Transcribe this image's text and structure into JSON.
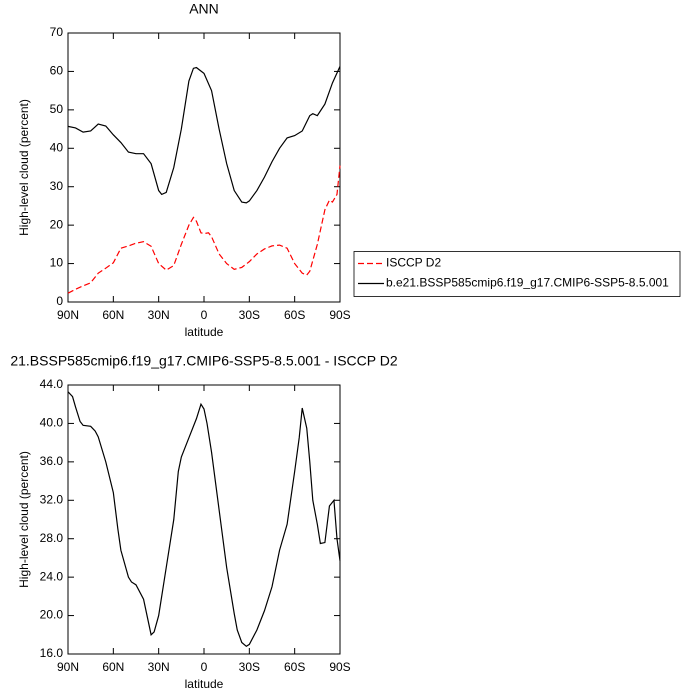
{
  "chart_data": [
    {
      "type": "line",
      "title": "ANN",
      "ylabel": "High-level cloud (percent)",
      "xlabel": "latitude",
      "xlim": [
        90,
        -90
      ],
      "xticks": [
        {
          "value": 90,
          "label": "90N"
        },
        {
          "value": 60,
          "label": "60N"
        },
        {
          "value": 30,
          "label": "30N"
        },
        0,
        {
          "value": -30,
          "label": "30S"
        },
        {
          "value": -60,
          "label": "60S"
        },
        {
          "value": -90,
          "label": "90S"
        }
      ],
      "ylim": [
        0,
        70
      ],
      "yticks": [
        0,
        10,
        20,
        30,
        40,
        50,
        60,
        70
      ],
      "legend": "right",
      "series": [
        {
          "name": "ISCCP D2",
          "color": "#ff0000",
          "linestyle": "dashed",
          "x": [
            90,
            85,
            80,
            75,
            70,
            65,
            60,
            55,
            50,
            45,
            40,
            35,
            30,
            25,
            20,
            15,
            10,
            7,
            5,
            2,
            0,
            -3,
            -5,
            -10,
            -15,
            -20,
            -25,
            -30,
            -35,
            -40,
            -45,
            -50,
            -55,
            -60,
            -65,
            -68,
            -70,
            -75,
            -80,
            -83,
            -85,
            -88,
            -90
          ],
          "values": [
            2.3,
            3.3,
            4.2,
            5,
            7.5,
            8.8,
            10.2,
            14,
            14.6,
            15.3,
            15.7,
            14.5,
            10,
            8.3,
            9.5,
            15,
            20,
            22,
            21,
            18,
            17.8,
            18,
            17,
            12.5,
            10,
            8.5,
            9,
            10.5,
            12.5,
            13.8,
            14.6,
            14.8,
            14,
            10,
            7.5,
            7,
            8,
            15,
            24,
            26.5,
            26,
            28,
            35.5
          ]
        },
        {
          "name": "b.e21.BSSP585cmip6.f19_g17.CMIP6-SSP5-8.5.001",
          "color": "#000000",
          "linestyle": "solid",
          "x": [
            90,
            85,
            80,
            75,
            70,
            65,
            60,
            55,
            50,
            45,
            40,
            35,
            30,
            28,
            25,
            20,
            15,
            10,
            7,
            5,
            0,
            -5,
            -10,
            -15,
            -20,
            -25,
            -28,
            -30,
            -35,
            -40,
            -45,
            -50,
            -55,
            -60,
            -65,
            -70,
            -72,
            -75,
            -80,
            -85,
            -90
          ],
          "values": [
            45.7,
            45.3,
            44.2,
            44.5,
            46.3,
            45.8,
            43.5,
            41.5,
            39,
            38.6,
            38.6,
            36,
            29,
            28,
            28.5,
            35,
            45,
            57.5,
            60.8,
            61,
            59.5,
            55,
            45,
            36,
            29,
            26,
            25.8,
            26.3,
            29,
            32.5,
            36.5,
            40,
            42.7,
            43.3,
            44.5,
            48.5,
            49,
            48.5,
            51.5,
            57,
            61.3
          ]
        }
      ]
    },
    {
      "type": "line",
      "title": "21.BSSP585cmip6.f19_g17.CMIP6-SSP5-8.5.001 - ISCCP D2",
      "ylabel": "High-level cloud (percent)",
      "xlabel": "latitude",
      "xlim": [
        90,
        -90
      ],
      "xticks": [
        {
          "value": 90,
          "label": "90N"
        },
        {
          "value": 60,
          "label": "60N"
        },
        {
          "value": 30,
          "label": "30N"
        },
        0,
        {
          "value": -30,
          "label": "30S"
        },
        {
          "value": -60,
          "label": "60S"
        },
        {
          "value": -90,
          "label": "90S"
        }
      ],
      "ylim": [
        16,
        44
      ],
      "yticks": [
        {
          "value": 16,
          "label": "16.0"
        },
        {
          "value": 20,
          "label": "20.0"
        },
        {
          "value": 24,
          "label": "24.0"
        },
        {
          "value": 28,
          "label": "28.0"
        },
        {
          "value": 32,
          "label": "32.0"
        },
        {
          "value": 36,
          "label": "36.0"
        },
        {
          "value": 40,
          "label": "40.0"
        },
        {
          "value": 44,
          "label": "44.0"
        }
      ],
      "color": "#000000",
      "x": [
        90,
        87,
        85,
        82,
        80,
        75,
        72,
        70,
        65,
        60,
        57,
        55,
        50,
        48,
        45,
        40,
        35,
        33,
        30,
        25,
        20,
        17,
        15,
        10,
        5,
        2,
        0,
        -2,
        -5,
        -10,
        -15,
        -20,
        -22,
        -25,
        -28,
        -30,
        -35,
        -40,
        -45,
        -50,
        -55,
        -58,
        -60,
        -63,
        -65,
        -68,
        -70,
        -72,
        -75,
        -77,
        -80,
        -83,
        -86,
        -88,
        -90
      ],
      "values": [
        43.3,
        42.8,
        41.7,
        40.2,
        39.8,
        39.7,
        39.2,
        38.6,
        36,
        32.8,
        29,
        26.8,
        24,
        23.5,
        23.2,
        21.7,
        18,
        18.3,
        20,
        25,
        30,
        35,
        36.5,
        38.5,
        40.5,
        42,
        41.5,
        40,
        37,
        31,
        25,
        20.2,
        18.5,
        17.2,
        16.8,
        17,
        18.5,
        20.5,
        23,
        26.8,
        29.5,
        32.8,
        35,
        38.5,
        41.6,
        39.5,
        36,
        32,
        29.5,
        27.5,
        27.6,
        31.4,
        32,
        28,
        25.7
      ]
    }
  ]
}
